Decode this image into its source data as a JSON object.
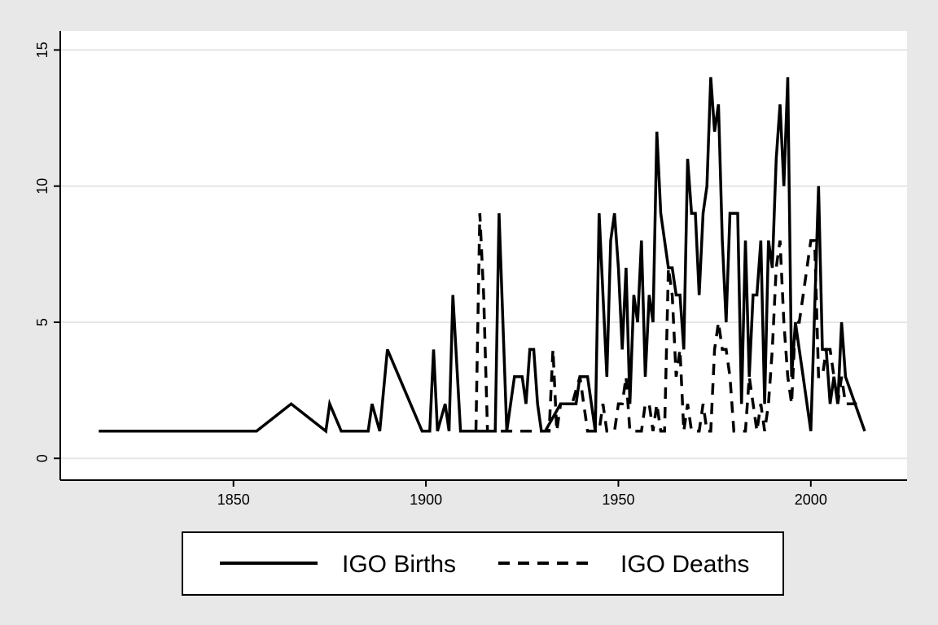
{
  "chart_data": {
    "type": "line",
    "title": "",
    "xlabel": "",
    "ylabel": "",
    "xlim": [
      1805,
      2025
    ],
    "ylim": [
      -0.8,
      15.7
    ],
    "x_ticks": [
      "1850",
      "1900",
      "1950",
      "2000"
    ],
    "x_tick_values": [
      1850,
      1900,
      1950,
      2000
    ],
    "y_ticks": [
      "0",
      "5",
      "10",
      "15"
    ],
    "y_tick_values": [
      0,
      5,
      10,
      15
    ],
    "grid": "horizontal",
    "legend_position": "bottom",
    "colors": {
      "background": "#e8e8e8",
      "plot": "#ffffff",
      "grid": "#e5e5e5",
      "line": "#000000"
    },
    "series": [
      {
        "name": "IGO Births",
        "style": "solid",
        "points": [
          [
            1815,
            1
          ],
          [
            1856,
            1
          ],
          [
            1865,
            2
          ],
          [
            1874,
            1
          ],
          [
            1875,
            2
          ],
          [
            1878,
            1
          ],
          [
            1885,
            1
          ],
          [
            1886,
            2
          ],
          [
            1888,
            1
          ],
          [
            1890,
            4
          ],
          [
            1899,
            1
          ],
          [
            1901,
            1
          ],
          [
            1902,
            4
          ],
          [
            1903,
            1
          ],
          [
            1905,
            2
          ],
          [
            1906,
            1
          ],
          [
            1907,
            6
          ],
          [
            1909,
            1
          ],
          [
            1918,
            1
          ],
          [
            1919,
            9
          ],
          [
            1921,
            1
          ],
          [
            1923,
            3
          ],
          [
            1925,
            3
          ],
          [
            1926,
            2
          ],
          [
            1927,
            4
          ],
          [
            1928,
            4
          ],
          [
            1929,
            2
          ],
          [
            1930,
            1
          ],
          [
            1931,
            1
          ],
          [
            1935,
            2
          ],
          [
            1939,
            2
          ],
          [
            1940,
            3
          ],
          [
            1942,
            3
          ],
          [
            1944,
            1
          ],
          [
            1945,
            9
          ],
          [
            1947,
            3
          ],
          [
            1948,
            8
          ],
          [
            1949,
            9
          ],
          [
            1950,
            7
          ],
          [
            1951,
            4
          ],
          [
            1952,
            7
          ],
          [
            1953,
            2
          ],
          [
            1954,
            6
          ],
          [
            1955,
            5
          ],
          [
            1956,
            8
          ],
          [
            1957,
            3
          ],
          [
            1958,
            6
          ],
          [
            1959,
            5
          ],
          [
            1960,
            12
          ],
          [
            1961,
            9
          ],
          [
            1963,
            7
          ],
          [
            1964,
            7
          ],
          [
            1965,
            6
          ],
          [
            1966,
            6
          ],
          [
            1967,
            4
          ],
          [
            1968,
            11
          ],
          [
            1969,
            9
          ],
          [
            1970,
            9
          ],
          [
            1971,
            6
          ],
          [
            1972,
            9
          ],
          [
            1973,
            10
          ],
          [
            1974,
            14
          ],
          [
            1975,
            12
          ],
          [
            1976,
            13
          ],
          [
            1977,
            8
          ],
          [
            1978,
            5
          ],
          [
            1979,
            9
          ],
          [
            1980,
            9
          ],
          [
            1981,
            9
          ],
          [
            1982,
            2
          ],
          [
            1983,
            8
          ],
          [
            1984,
            3
          ],
          [
            1985,
            6
          ],
          [
            1986,
            6
          ],
          [
            1987,
            8
          ],
          [
            1988,
            2
          ],
          [
            1989,
            8
          ],
          [
            1990,
            7
          ],
          [
            1991,
            11
          ],
          [
            1992,
            13
          ],
          [
            1993,
            10
          ],
          [
            1994,
            14
          ],
          [
            1995,
            3
          ],
          [
            1996,
            5
          ],
          [
            1997,
            4
          ],
          [
            1998,
            3
          ],
          [
            2000,
            1
          ],
          [
            2002,
            10
          ],
          [
            2003,
            4
          ],
          [
            2004,
            4
          ],
          [
            2005,
            2
          ],
          [
            2006,
            3
          ],
          [
            2007,
            2
          ],
          [
            2008,
            5
          ],
          [
            2009,
            3
          ],
          [
            2014,
            1
          ]
        ]
      },
      {
        "name": "IGO Deaths",
        "style": "dashed",
        "points": [
          [
            1913,
            1
          ],
          [
            1914,
            9
          ],
          [
            1915,
            6
          ],
          [
            1916,
            1
          ],
          [
            1920,
            1
          ],
          [
            1925,
            1
          ],
          [
            1930,
            1
          ],
          [
            1932,
            1
          ],
          [
            1933,
            4
          ],
          [
            1934,
            1
          ],
          [
            1935,
            2
          ],
          [
            1938,
            2
          ],
          [
            1940,
            3
          ],
          [
            1941,
            2
          ],
          [
            1942,
            1
          ],
          [
            1944,
            1
          ],
          [
            1945,
            1
          ],
          [
            1946,
            2
          ],
          [
            1947,
            1
          ],
          [
            1948,
            1
          ],
          [
            1949,
            1
          ],
          [
            1950,
            2
          ],
          [
            1951,
            2
          ],
          [
            1952,
            3
          ],
          [
            1953,
            1
          ],
          [
            1954,
            1
          ],
          [
            1955,
            1
          ],
          [
            1956,
            1
          ],
          [
            1957,
            2
          ],
          [
            1958,
            2
          ],
          [
            1959,
            1
          ],
          [
            1960,
            2
          ],
          [
            1961,
            1
          ],
          [
            1962,
            1
          ],
          [
            1963,
            7
          ],
          [
            1964,
            6
          ],
          [
            1965,
            3
          ],
          [
            1966,
            4
          ],
          [
            1967,
            1
          ],
          [
            1968,
            2
          ],
          [
            1969,
            1
          ],
          [
            1970,
            1
          ],
          [
            1971,
            1
          ],
          [
            1972,
            2
          ],
          [
            1973,
            1
          ],
          [
            1974,
            1
          ],
          [
            1975,
            4
          ],
          [
            1976,
            5
          ],
          [
            1977,
            4
          ],
          [
            1978,
            4
          ],
          [
            1979,
            3
          ],
          [
            1980,
            1
          ],
          [
            1981,
            1
          ],
          [
            1982,
            1
          ],
          [
            1983,
            1
          ],
          [
            1984,
            3
          ],
          [
            1985,
            2
          ],
          [
            1986,
            1
          ],
          [
            1987,
            2
          ],
          [
            1988,
            1
          ],
          [
            1989,
            2
          ],
          [
            1990,
            4
          ],
          [
            1991,
            7
          ],
          [
            1992,
            8
          ],
          [
            1993,
            5
          ],
          [
            1994,
            3
          ],
          [
            1995,
            2
          ],
          [
            1996,
            5
          ],
          [
            1997,
            5
          ],
          [
            1998,
            6
          ],
          [
            1999,
            7
          ],
          [
            2000,
            8
          ],
          [
            2001,
            8
          ],
          [
            2002,
            3
          ],
          [
            2003,
            3
          ],
          [
            2004,
            4
          ],
          [
            2005,
            4
          ],
          [
            2006,
            3
          ],
          [
            2007,
            2
          ],
          [
            2008,
            3
          ],
          [
            2009,
            2
          ],
          [
            2010,
            2
          ],
          [
            2012,
            2
          ]
        ]
      }
    ]
  }
}
